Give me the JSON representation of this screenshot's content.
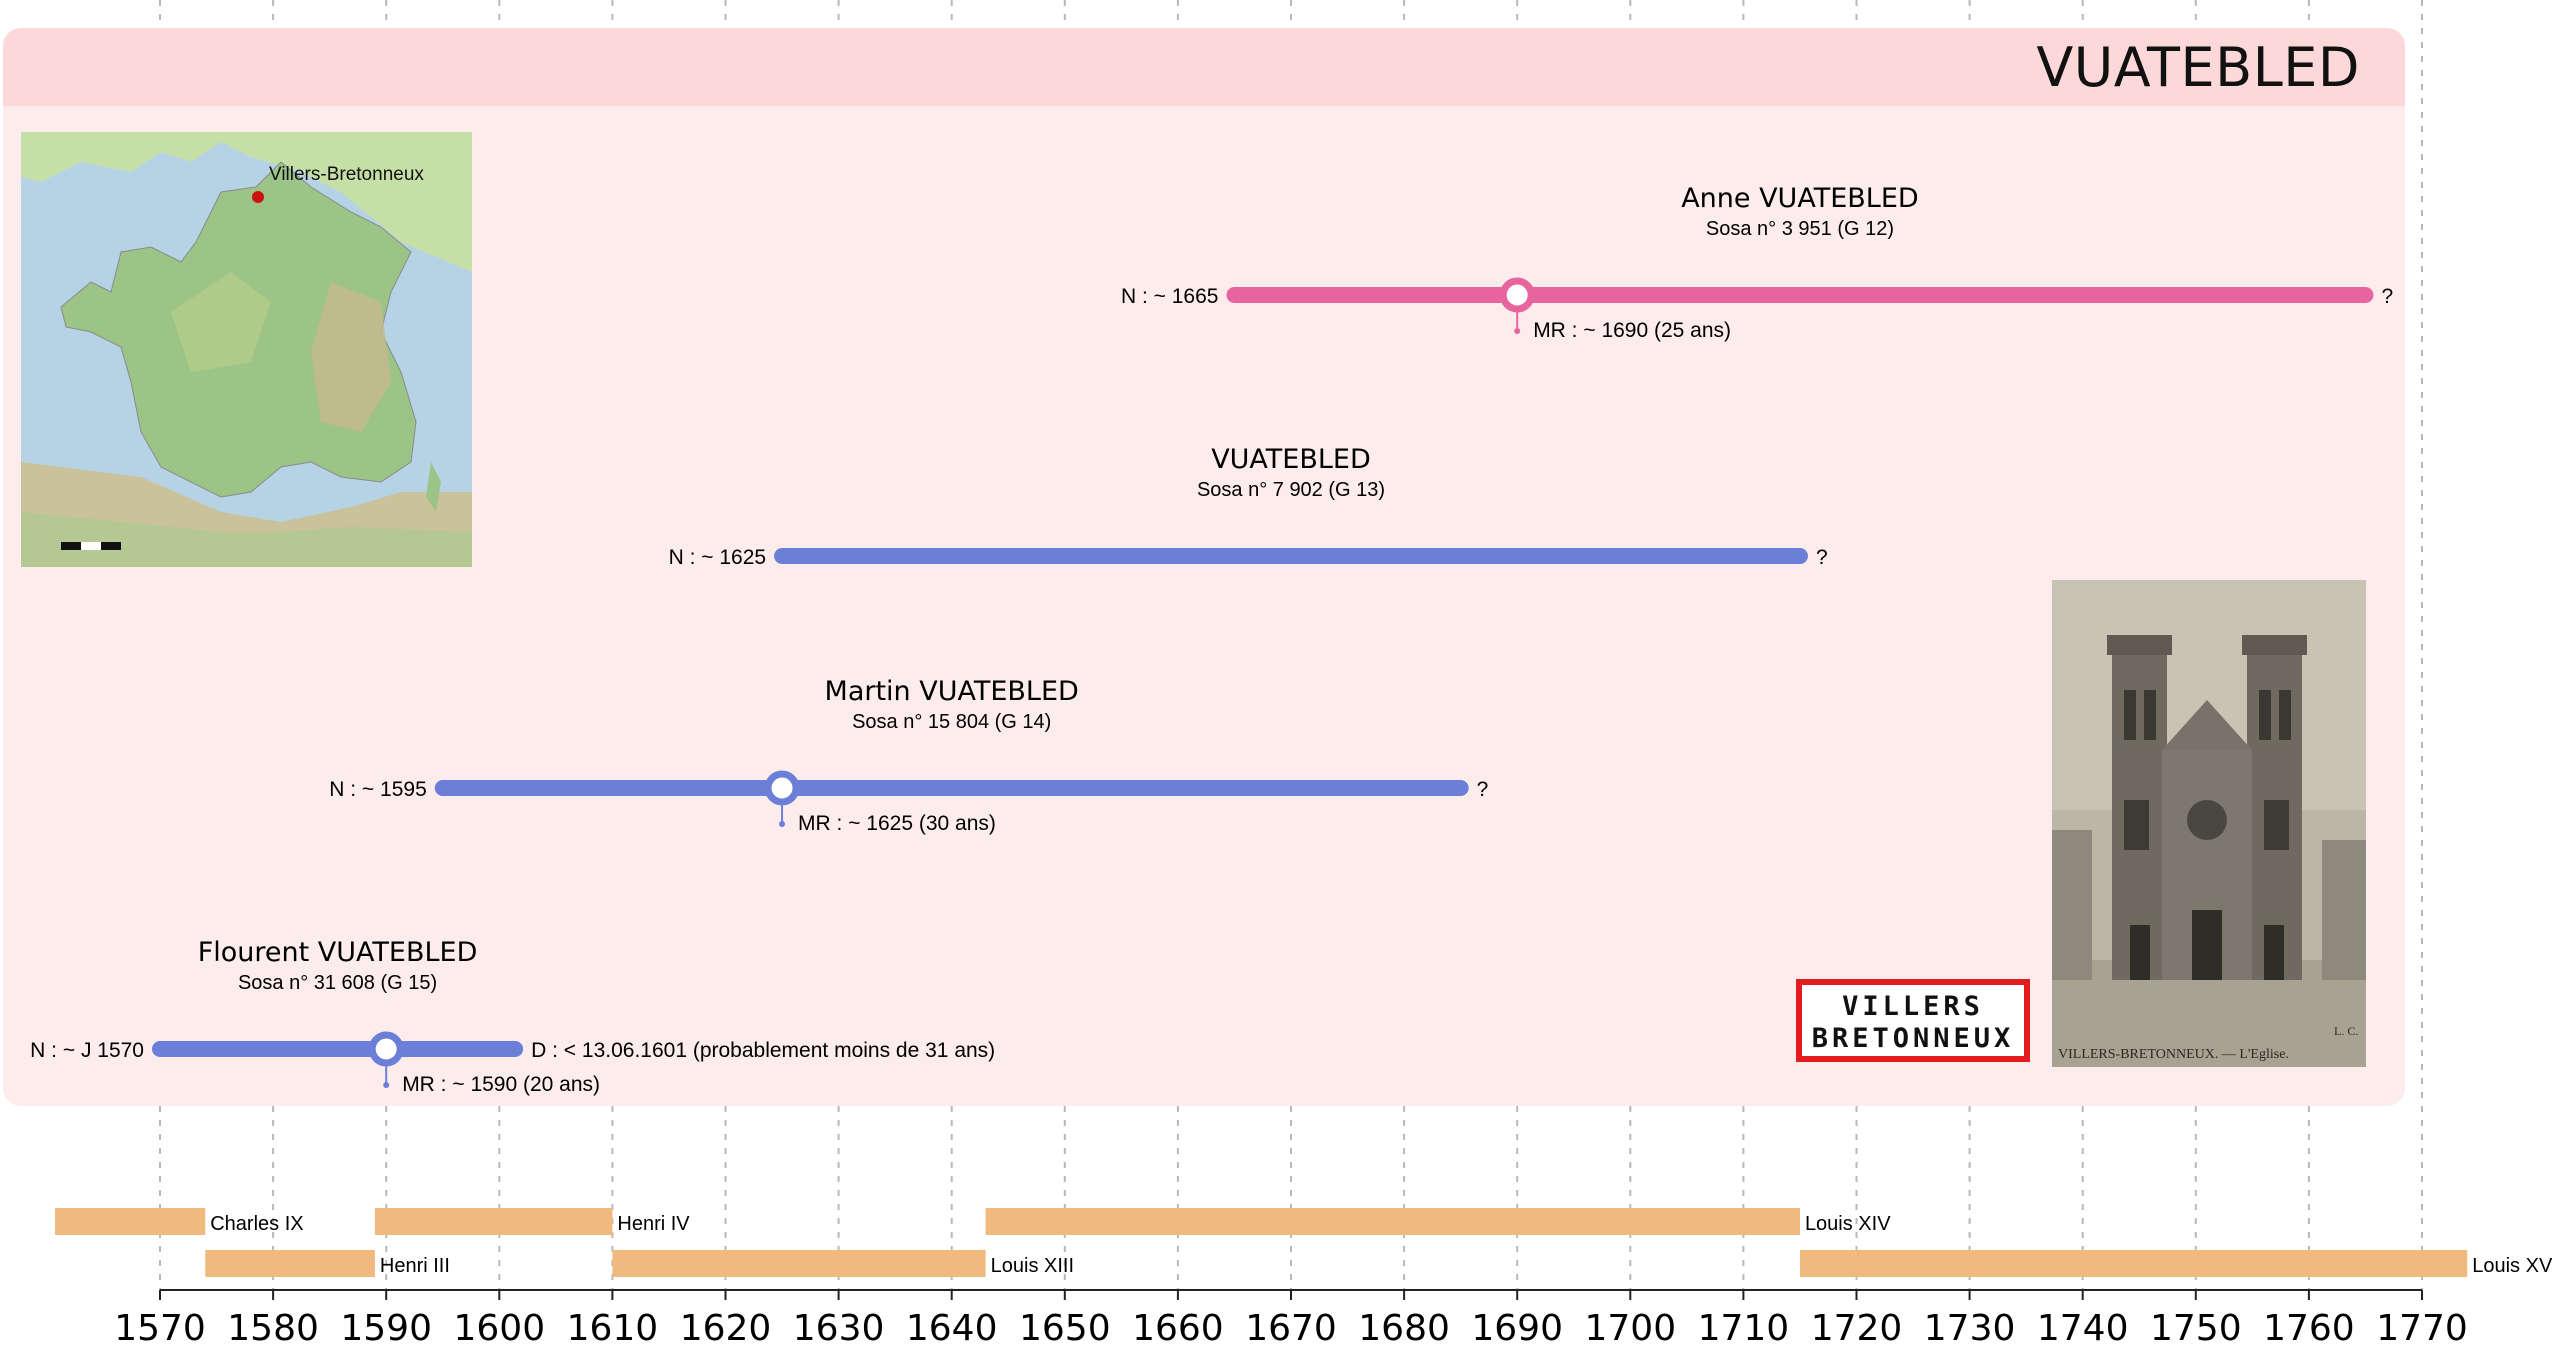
{
  "header": {
    "family_name": "VUATEBLED"
  },
  "map": {
    "place_label": "Villers-Bretonneux",
    "marker_color": "#cc1111"
  },
  "sign": {
    "line1": "VILLERS",
    "line2": "BRETONNEUX"
  },
  "church": {
    "caption_left": "VILLERS-BRETONNEUX. — L'Eglise.",
    "caption_corner": "L. C."
  },
  "colors": {
    "female": "#e8649f",
    "male": "#6b7fd8",
    "reign": "#f0b97e",
    "panel": "#fcecec",
    "header": "#fcd8d8"
  },
  "chart_data": {
    "type": "timeline",
    "x_range": [
      1570,
      1770
    ],
    "ticks": [
      1570,
      1580,
      1590,
      1600,
      1610,
      1620,
      1630,
      1640,
      1650,
      1660,
      1670,
      1680,
      1690,
      1700,
      1710,
      1720,
      1730,
      1740,
      1750,
      1760,
      1770
    ],
    "persons": [
      {
        "name": "Anne VUATEBLED",
        "sosa": "Sosa n° 3 951 (G 12)",
        "color": "female",
        "start": 1665,
        "end": 1765,
        "birth_label": "N : ~ 1665",
        "end_label": "?",
        "marriage": 1690,
        "marriage_label": "MR : ~ 1690 (25 ans)"
      },
      {
        "name": "VUATEBLED",
        "sosa": "Sosa n° 7 902 (G 13)",
        "color": "male",
        "start": 1625,
        "end": 1715,
        "birth_label": "N : ~ 1625",
        "end_label": "?"
      },
      {
        "name": "Martin VUATEBLED",
        "sosa": "Sosa n° 15 804 (G 14)",
        "color": "male",
        "start": 1595,
        "end": 1685,
        "birth_label": "N : ~ 1595",
        "end_label": "?",
        "marriage": 1625,
        "marriage_label": "MR : ~ 1625 (30 ans)"
      },
      {
        "name": "Flourent VUATEBLED",
        "sosa": "Sosa n° 31 608 (G 15)",
        "color": "male",
        "start": 1570,
        "end": 1601.4,
        "birth_label": "N : ~ J 1570",
        "end_label": "D : < 13.06.1601 (probablement moins de 31 ans)",
        "marriage": 1590,
        "marriage_label": "MR : ~ 1590 (20 ans)"
      }
    ],
    "reigns": [
      {
        "name": "Charles IX",
        "start": 1560,
        "end": 1574,
        "row": 0
      },
      {
        "name": "Henri III",
        "start": 1574,
        "end": 1589,
        "row": 1
      },
      {
        "name": "Henri IV",
        "start": 1589,
        "end": 1610,
        "row": 0
      },
      {
        "name": "Louis XIII",
        "start": 1610,
        "end": 1643,
        "row": 1
      },
      {
        "name": "Louis XIV",
        "start": 1643,
        "end": 1715,
        "row": 0
      },
      {
        "name": "Louis XV",
        "start": 1715,
        "end": 1774,
        "row": 1
      }
    ]
  }
}
